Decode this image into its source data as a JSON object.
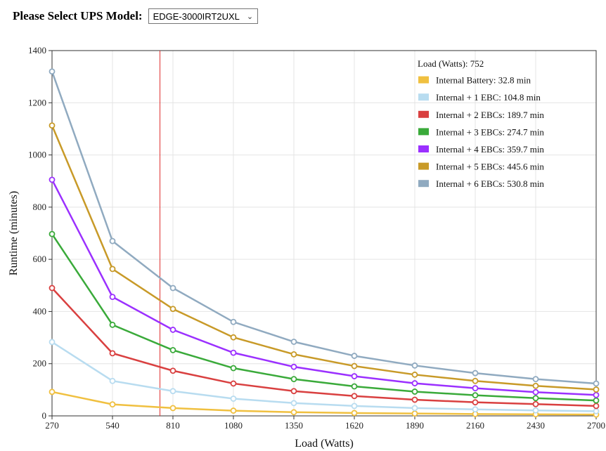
{
  "header": {
    "select_label": "Please Select UPS Model:",
    "selected_model": "EDGE-3000IRT2UXL"
  },
  "chart_data": {
    "type": "line",
    "xlabel": "Load (Watts)",
    "ylabel": "Runtime (minutes)",
    "xlim": [
      270,
      2700
    ],
    "ylim": [
      0,
      1400
    ],
    "x_ticks": [
      270,
      540,
      810,
      1080,
      1350,
      1620,
      1890,
      2160,
      2430,
      2700
    ],
    "y_ticks": [
      0,
      200,
      400,
      600,
      800,
      1000,
      1200,
      1400
    ],
    "grid": true,
    "marker_load": 752,
    "legend_position": "top-right",
    "legend_title": "Load (Watts): 752",
    "x": [
      270,
      540,
      810,
      1080,
      1350,
      1620,
      1890,
      2160,
      2430,
      2700
    ],
    "series": [
      {
        "name": "Internal Battery",
        "readout": "Internal Battery: 32.8 min",
        "color": "#f0c040",
        "values": [
          92,
          44,
          30,
          20,
          14,
          11,
          9,
          7,
          6,
          5
        ]
      },
      {
        "name": "Internal + 1 EBC",
        "readout": "Internal + 1 EBC: 104.8 min",
        "color": "#b8dcf0",
        "values": [
          283,
          134,
          95,
          66,
          49,
          38,
          30,
          25,
          21,
          18
        ]
      },
      {
        "name": "Internal + 2 EBCs",
        "readout": "Internal + 2 EBCs: 189.7 min",
        "color": "#d94040",
        "values": [
          490,
          240,
          173,
          124,
          95,
          76,
          62,
          52,
          45,
          38
        ]
      },
      {
        "name": "Internal + 3 EBCs",
        "readout": "Internal + 3 EBCs: 274.7 min",
        "color": "#3aaa3a",
        "values": [
          697,
          349,
          252,
          183,
          141,
          113,
          93,
          79,
          68,
          59
        ]
      },
      {
        "name": "Internal + 4 EBCs",
        "readout": "Internal + 4 EBCs: 359.7 min",
        "color": "#9b30ff",
        "values": [
          905,
          456,
          330,
          242,
          188,
          152,
          125,
          106,
          91,
          80
        ]
      },
      {
        "name": "Internal + 5 EBCs",
        "readout": "Internal + 5 EBCs: 445.6 min",
        "color": "#c89a28",
        "values": [
          1113,
          563,
          410,
          301,
          236,
          191,
          158,
          134,
          115,
          101
        ]
      },
      {
        "name": "Internal + 6 EBCs",
        "readout": "Internal + 6 EBCs: 530.8 min",
        "color": "#90aac0",
        "values": [
          1320,
          670,
          490,
          360,
          284,
          230,
          193,
          164,
          141,
          124
        ]
      }
    ]
  }
}
